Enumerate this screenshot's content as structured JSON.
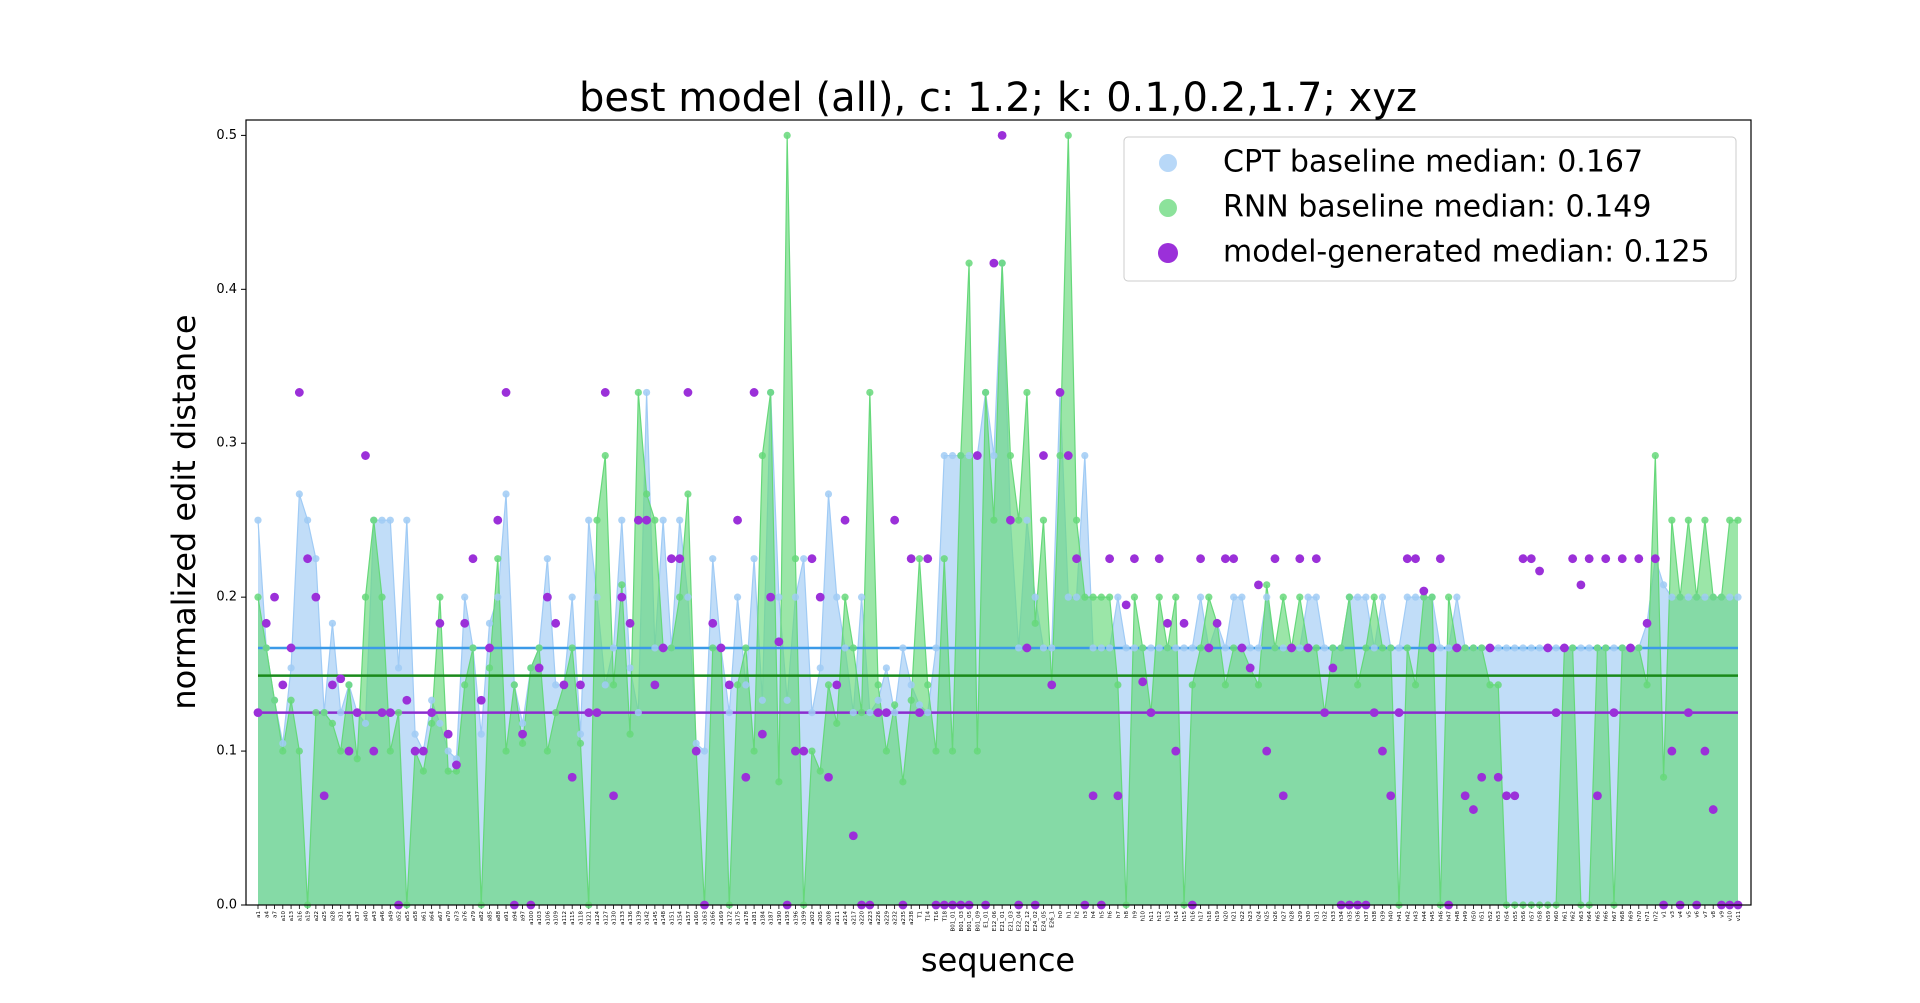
{
  "chart_data": {
    "type": "line",
    "title": "best model (all), c: 1.2; k: 0.1,0.2,1.7; xyz",
    "x_label": "sequence",
    "y_label": "normalized edit distance",
    "legend": "upper right",
    "ylim": [
      0,
      0.51
    ],
    "yticks": [
      {
        "value": 0,
        "label": "0.0"
      },
      0.1,
      0.2,
      0.3,
      0.4,
      0.5
    ],
    "categories": [
      "a1",
      "a4",
      "a7",
      "a10",
      "a13",
      "a16",
      "a19",
      "a22",
      "a25",
      "a28",
      "a31",
      "a34",
      "a37",
      "a40",
      "a43",
      "a46",
      "a49",
      "a52",
      "a55",
      "a58",
      "a61",
      "a64",
      "a67",
      "a70",
      "a73",
      "a76",
      "a79",
      "a82",
      "a85",
      "a88",
      "a91",
      "a94",
      "a97",
      "a100",
      "a103",
      "a106",
      "a109",
      "a112",
      "a115",
      "a118",
      "a121",
      "a124",
      "a127",
      "a130",
      "a133",
      "a136",
      "a139",
      "a142",
      "a145",
      "a148",
      "a151",
      "a154",
      "a157",
      "a160",
      "a163",
      "a166",
      "a169",
      "a172",
      "a175",
      "a178",
      "a181",
      "a184",
      "a187",
      "a190",
      "a193",
      "a196",
      "a199",
      "a202",
      "a205",
      "a208",
      "a211",
      "a214",
      "a217",
      "a220",
      "a223",
      "a226",
      "a229",
      "a232",
      "a235",
      "a238",
      "T1",
      "T14",
      "T16",
      "T18",
      "B01_01",
      "B01_03",
      "B01_05",
      "B01_09",
      "E1_01",
      "E12_06",
      "E21_01",
      "E21_03",
      "E22_04",
      "E22_12",
      "E24_02",
      "E24_05",
      "E26_1",
      "h0",
      "h1",
      "h2",
      "h3",
      "h4",
      "h5",
      "h6",
      "h7",
      "h8",
      "h9",
      "h10",
      "h11",
      "h12",
      "h13",
      "h14",
      "h15",
      "h16",
      "h17",
      "h18",
      "h19",
      "h20",
      "h21",
      "h22",
      "h23",
      "h24",
      "h25",
      "h26",
      "h27",
      "h28",
      "h29",
      "h30",
      "h31",
      "h32",
      "h33",
      "h34",
      "h35",
      "h36",
      "h37",
      "h38",
      "h39",
      "h40",
      "h41",
      "h42",
      "h43",
      "h44",
      "h45",
      "h46",
      "h47",
      "h48",
      "h49",
      "h50",
      "h51",
      "h52",
      "h53",
      "h54",
      "h55",
      "h56",
      "h57",
      "h58",
      "h59",
      "h60",
      "h61",
      "h62",
      "h63",
      "h64",
      "h65",
      "h66",
      "h67",
      "h68",
      "h69",
      "h70",
      "h71",
      "h72",
      "v1",
      "v3",
      "v4",
      "v5",
      "v6",
      "v7",
      "v8",
      "v9",
      "v10",
      "v11"
    ],
    "series": [
      {
        "name": "CPT baseline median: 0.167",
        "color": "#a0cbf5",
        "median": 0.167,
        "median_color": "#3b9ae8",
        "area": true,
        "values": [
          0.25,
          0.167,
          0.133,
          0.105,
          0.154,
          0.267,
          0.25,
          0.225,
          0.125,
          0.183,
          0.125,
          0.143,
          0.125,
          0.118,
          0.25,
          0.25,
          0.25,
          0.154,
          0.25,
          0.111,
          0.1,
          0.133,
          0.118,
          0.1,
          0.095,
          0.2,
          0.167,
          0.111,
          0.183,
          0.2,
          0.267,
          0.143,
          0.118,
          0.154,
          0.167,
          0.225,
          0.143,
          0.143,
          0.2,
          0.111,
          0.25,
          0.2,
          0.143,
          0.167,
          0.25,
          0.154,
          0.125,
          0.333,
          0.167,
          0.25,
          0.167,
          0.25,
          0.2,
          0.105,
          0.1,
          0.225,
          0.167,
          0.125,
          0.2,
          0.143,
          0.225,
          0.133,
          0.333,
          0.2,
          0.133,
          0.2,
          0.225,
          0.125,
          0.154,
          0.267,
          0.2,
          0.167,
          0.125,
          0.2,
          0.125,
          0.133,
          0.154,
          0.125,
          0.167,
          0.143,
          0.13,
          0.125,
          0.167,
          0.292,
          0.292,
          0.292,
          0.292,
          0.292,
          0.333,
          0.292,
          0.417,
          0.25,
          0.167,
          0.25,
          0.2,
          0.167,
          0.167,
          0.333,
          0.2,
          0.2,
          0.292,
          0.167,
          0.167,
          0.167,
          0.2,
          0.167,
          0.167,
          0.167,
          0.167,
          0.167,
          0.167,
          0.167,
          0.167,
          0.167,
          0.2,
          0.167,
          0.183,
          0.167,
          0.2,
          0.2,
          0.167,
          0.167,
          0.2,
          0.167,
          0.167,
          0.167,
          0.167,
          0.2,
          0.2,
          0.167,
          0.167,
          0.167,
          0.2,
          0.2,
          0.2,
          0.167,
          0.2,
          0.167,
          0.167,
          0.2,
          0.2,
          0.2,
          0.2,
          0.167,
          0.167,
          0.2,
          0.167,
          0.167,
          0.167,
          0.167,
          0.167,
          0.167,
          0.167,
          0.167,
          0.167,
          0.167,
          0.167,
          0.167,
          0.167,
          0.167,
          0.167,
          0.167,
          0.167,
          0.167,
          0.167,
          0.167,
          0.167,
          0.167,
          0.183,
          0.225,
          0.208,
          0.2,
          0.2,
          0.2,
          0.2,
          0.2,
          0.2,
          0.2,
          0.2,
          0.2
        ]
      },
      {
        "name": "RNN baseline median: 0.149",
        "color": "#66d87a",
        "median": 0.149,
        "median_color": "#1a8a1a",
        "area": true,
        "values": [
          0.2,
          0.167,
          0.133,
          0.1,
          0.133,
          0.1,
          0,
          0.125,
          0.125,
          0.118,
          0.1,
          0.143,
          0.095,
          0.2,
          0.25,
          0.2,
          0.1,
          0.125,
          0,
          0.1,
          0.087,
          0.118,
          0.2,
          0.087,
          0.087,
          0.143,
          0.167,
          0,
          0.154,
          0.225,
          0.1,
          0.143,
          0.105,
          0.154,
          0.167,
          0.1,
          0.125,
          0.143,
          0.167,
          0.105,
          0,
          0.25,
          0.292,
          0.143,
          0.208,
          0.111,
          0.333,
          0.267,
          0.25,
          0.167,
          0.167,
          0.2,
          0.267,
          0.1,
          0,
          0.167,
          0.167,
          0,
          0.143,
          0.167,
          0.1,
          0.292,
          0.333,
          0.08,
          0.5,
          0.225,
          0,
          0.1,
          0.087,
          0.143,
          0.118,
          0.2,
          0.167,
          0.125,
          0.333,
          0.143,
          0.1,
          0.13,
          0.08,
          0.133,
          0.225,
          0.143,
          0.1,
          0.225,
          0.1,
          0.292,
          0.417,
          0.1,
          0.333,
          0.25,
          0.417,
          0.292,
          0.25,
          0.333,
          0.183,
          0.25,
          0.143,
          0.292,
          0.5,
          0.25,
          0.2,
          0.2,
          0.2,
          0.2,
          0.143,
          0,
          0.2,
          0.167,
          0.125,
          0.2,
          0.167,
          0.2,
          0,
          0.143,
          0.167,
          0.2,
          0.183,
          0.143,
          0.167,
          0.167,
          0.154,
          0.143,
          0.208,
          0.167,
          0.2,
          0.167,
          0.2,
          0.167,
          0.167,
          0.125,
          0.167,
          0.167,
          0.2,
          0.143,
          0.167,
          0.2,
          0.167,
          0.167,
          0,
          0.167,
          0.143,
          0.2,
          0.2,
          0,
          0.2,
          0.167,
          0.167,
          0.167,
          0.167,
          0.143,
          0.143,
          0,
          0,
          0,
          0,
          0,
          0,
          0,
          0.167,
          0.167,
          0,
          0,
          0.167,
          0.167,
          0,
          0.167,
          0.167,
          0.167,
          0.143,
          0.292,
          0.083,
          0.25,
          0.2,
          0.25,
          0.2,
          0.25,
          0.2,
          0.2,
          0.25,
          0.25
        ]
      },
      {
        "name": "model-generated median: 0.125",
        "color": "#9b30d9",
        "median": 0.125,
        "median_color": "#8b2ccf",
        "area": false,
        "values": [
          0.125,
          0.183,
          0.2,
          0.143,
          0.167,
          0.333,
          0.225,
          0.2,
          0.071,
          0.143,
          0.147,
          0.1,
          0.125,
          0.292,
          0.1,
          0.125,
          0.125,
          0,
          0.133,
          0.1,
          0.1,
          0.125,
          0.183,
          0.111,
          0.091,
          0.183,
          0.225,
          0.133,
          0.167,
          0.25,
          0.333,
          0,
          0.111,
          0,
          0.154,
          0.2,
          0.183,
          0.143,
          0.083,
          0.143,
          0.125,
          0.125,
          0.333,
          0.071,
          0.2,
          0.183,
          0.25,
          0.25,
          0.143,
          0.167,
          0.225,
          0.225,
          0.333,
          0.1,
          0,
          0.183,
          0.167,
          0.143,
          0.25,
          0.083,
          0.333,
          0.111,
          0.2,
          0.171,
          0,
          0.1,
          0.1,
          0.225,
          0.2,
          0.083,
          0.143,
          0.25,
          0.045,
          0,
          0,
          0.125,
          0.125,
          0.25,
          0,
          0.225,
          0.125,
          0.225,
          0,
          0,
          0,
          0,
          0,
          0.292,
          0,
          0.417,
          0.5,
          0.25,
          0,
          0.167,
          0,
          0.292,
          0.143,
          0.333,
          0.292,
          0.225,
          0,
          0.071,
          0,
          0.225,
          0.071,
          0.195,
          0.225,
          0.145,
          0.125,
          0.225,
          0.183,
          0.1,
          0.183,
          0,
          0.225,
          0.167,
          0.183,
          0.225,
          0.225,
          0.167,
          0.154,
          0.208,
          0.1,
          0.225,
          0.071,
          0.167,
          0.225,
          0.167,
          0.225,
          0.125,
          0.154,
          0,
          0,
          0,
          0,
          0.125,
          0.1,
          0.071,
          0.125,
          0.225,
          0.225,
          0.204,
          0.167,
          0.225,
          0,
          0.167,
          0.071,
          0.062,
          0.083,
          0.167,
          0.083,
          0.071,
          0.071,
          0.225,
          0.225,
          0.217,
          0.167,
          0.125,
          0.167,
          0.225,
          0.208,
          0.225,
          0.071,
          0.225,
          0.125,
          0.225,
          0.167,
          0.225,
          0.183,
          0.225,
          0,
          0.1,
          0,
          0.125,
          0,
          0.1,
          0.062,
          0,
          0,
          0
        ]
      }
    ]
  }
}
